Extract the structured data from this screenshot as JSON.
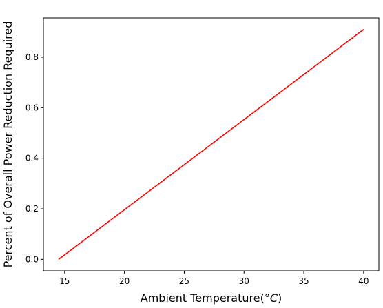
{
  "chart_data": {
    "type": "line",
    "title": "",
    "xlabel": "Ambient Temperature(",
    "xlabel_unit": "°C",
    "xlabel_close": ")",
    "ylabel": "Percent of Overall Power Reduction Required",
    "xlim": [
      13.225,
      41.275
    ],
    "ylim": [
      -0.0455,
      0.9555
    ],
    "xticks": [
      15,
      20,
      25,
      30,
      35,
      40
    ],
    "yticks": [
      0.0,
      0.2,
      0.4,
      0.6,
      0.8
    ],
    "xtick_labels": [
      "15",
      "20",
      "25",
      "30",
      "35",
      "40"
    ],
    "ytick_labels": [
      "0.0",
      "0.2",
      "0.4",
      "0.6",
      "0.8"
    ],
    "grid": false,
    "legend": "none",
    "series": [
      {
        "color": "#ff0000",
        "x": [
          14.5,
          40
        ],
        "y": [
          0.0,
          0.91
        ]
      }
    ]
  }
}
